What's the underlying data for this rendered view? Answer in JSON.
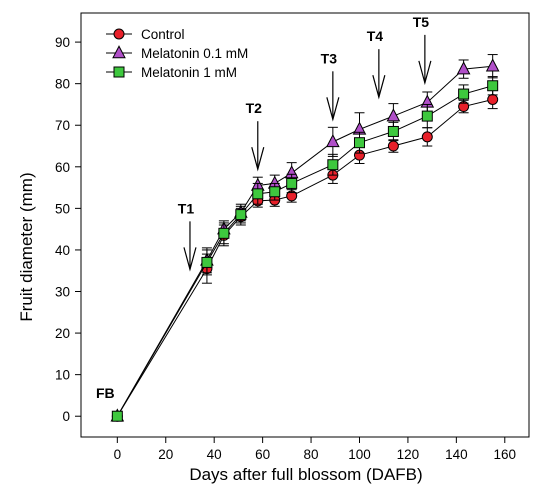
{
  "chart_data": {
    "type": "line",
    "xlabel": "Days after full blossom (DAFB)",
    "ylabel": "Fruit diameter (mm)",
    "xlim": [
      -15,
      170
    ],
    "ylim": [
      -5,
      97
    ],
    "xticks": [
      0,
      20,
      40,
      60,
      80,
      100,
      120,
      140,
      160
    ],
    "yticks": [
      0,
      10,
      20,
      30,
      40,
      50,
      60,
      70,
      80,
      90
    ],
    "grid": false,
    "legend_position": "top-left",
    "series": [
      {
        "name": "Control",
        "marker": "circle",
        "color": "#e8202a",
        "x": [
          0,
          37,
          44,
          51,
          58,
          65,
          72,
          89,
          100,
          114,
          128,
          143,
          155
        ],
        "y": [
          0,
          35.5,
          43.5,
          48,
          51.8,
          52,
          53,
          58,
          62.8,
          65,
          67.2,
          74.5,
          76.2
        ],
        "err": [
          0,
          3.5,
          2.5,
          2,
          1.5,
          1.5,
          1.5,
          2,
          2,
          1.5,
          2.2,
          1.5,
          2.2
        ]
      },
      {
        "name": "Melatonin 0.1 mM",
        "marker": "triangle",
        "color": "#b04fc8",
        "x": [
          0,
          37,
          44,
          51,
          58,
          65,
          72,
          89,
          100,
          114,
          128,
          143,
          155
        ],
        "y": [
          0,
          37.5,
          45,
          49,
          55.5,
          56,
          58.5,
          66,
          69,
          72.2,
          75.5,
          83.5,
          84.2
        ],
        "err": [
          0,
          3,
          2,
          2,
          2,
          2,
          2.5,
          3.5,
          4,
          3,
          2.5,
          2.2,
          2.8
        ]
      },
      {
        "name": "Melatonin 1 mM",
        "marker": "square",
        "color": "#3ec83e",
        "x": [
          0,
          37,
          44,
          51,
          58,
          65,
          72,
          89,
          100,
          114,
          128,
          143,
          155
        ],
        "y": [
          0,
          37,
          44,
          48.5,
          53.5,
          54,
          56,
          60.5,
          65.8,
          68.5,
          72.2,
          77.5,
          79.5
        ],
        "err": [
          0,
          3,
          2.5,
          2,
          2.5,
          2,
          2.2,
          2.5,
          2.5,
          2.2,
          2.8,
          2.2,
          2.2
        ]
      }
    ],
    "annotations": [
      {
        "label": "FB",
        "x": 0,
        "arrow": false
      },
      {
        "label": "T1",
        "x": 30,
        "arrow": true
      },
      {
        "label": "T2",
        "x": 58,
        "arrow": true
      },
      {
        "label": "T3",
        "x": 89,
        "arrow": true
      },
      {
        "label": "T4",
        "x": 108,
        "arrow": true
      },
      {
        "label": "T5",
        "x": 127,
        "arrow": true
      }
    ]
  }
}
